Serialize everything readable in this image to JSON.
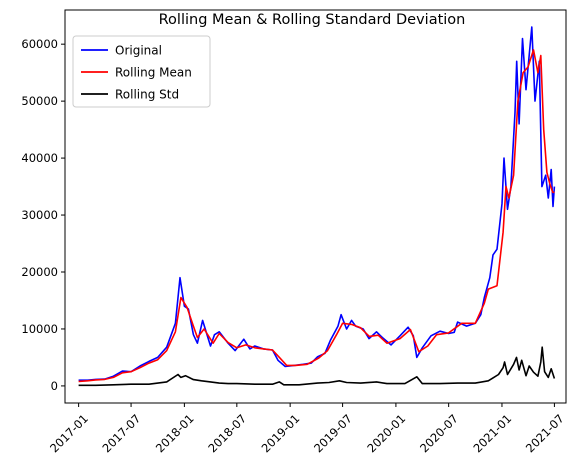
{
  "chart_data": {
    "type": "line",
    "title": "Rolling Mean & Rolling Standard Deviation",
    "xlabel": "",
    "ylabel": "",
    "xlim": [
      "2016-11-15",
      "2021-08-10"
    ],
    "ylim": [
      -3000,
      66000
    ],
    "x_ticks": [
      "2017-01",
      "2017-07",
      "2018-01",
      "2018-07",
      "2019-01",
      "2019-07",
      "2020-01",
      "2020-07",
      "2021-01",
      "2021-07"
    ],
    "y_ticks": [
      0,
      10000,
      20000,
      30000,
      40000,
      50000,
      60000
    ],
    "grid": false,
    "legend_position": "top-left",
    "series": [
      {
        "name": "Original",
        "color": "#0000ff",
        "points": [
          [
            "2017-01-01",
            1000
          ],
          [
            "2017-02-01",
            1000
          ],
          [
            "2017-03-01",
            1150
          ],
          [
            "2017-04-01",
            1200
          ],
          [
            "2017-05-01",
            1700
          ],
          [
            "2017-06-01",
            2600
          ],
          [
            "2017-07-01",
            2500
          ],
          [
            "2017-08-01",
            3500
          ],
          [
            "2017-09-01",
            4300
          ],
          [
            "2017-10-01",
            5000
          ],
          [
            "2017-11-01",
            6800
          ],
          [
            "2017-12-01",
            11000
          ],
          [
            "2017-12-17",
            19000
          ],
          [
            "2018-01-01",
            14000
          ],
          [
            "2018-01-15",
            13500
          ],
          [
            "2018-02-01",
            9000
          ],
          [
            "2018-02-15",
            7500
          ],
          [
            "2018-03-05",
            11500
          ],
          [
            "2018-04-01",
            7000
          ],
          [
            "2018-04-15",
            9000
          ],
          [
            "2018-05-01",
            9500
          ],
          [
            "2018-06-01",
            7500
          ],
          [
            "2018-06-25",
            6200
          ],
          [
            "2018-07-25",
            8200
          ],
          [
            "2018-08-15",
            6500
          ],
          [
            "2018-09-01",
            7000
          ],
          [
            "2018-10-01",
            6500
          ],
          [
            "2018-11-01",
            6300
          ],
          [
            "2018-11-20",
            4500
          ],
          [
            "2018-12-15",
            3400
          ],
          [
            "2019-01-15",
            3600
          ],
          [
            "2019-02-15",
            3800
          ],
          [
            "2019-03-15",
            4000
          ],
          [
            "2019-04-05",
            5100
          ],
          [
            "2019-05-01",
            5700
          ],
          [
            "2019-05-20",
            8000
          ],
          [
            "2019-06-15",
            10500
          ],
          [
            "2019-06-26",
            12500
          ],
          [
            "2019-07-15",
            10000
          ],
          [
            "2019-08-01",
            11500
          ],
          [
            "2019-08-15",
            10500
          ],
          [
            "2019-09-10",
            10000
          ],
          [
            "2019-09-30",
            8300
          ],
          [
            "2019-10-26",
            9500
          ],
          [
            "2019-11-15",
            8500
          ],
          [
            "2019-12-15",
            7200
          ],
          [
            "2020-01-15",
            8800
          ],
          [
            "2020-02-12",
            10300
          ],
          [
            "2020-03-01",
            8800
          ],
          [
            "2020-03-13",
            5000
          ],
          [
            "2020-04-01",
            6700
          ],
          [
            "2020-05-01",
            8800
          ],
          [
            "2020-06-01",
            9600
          ],
          [
            "2020-07-01",
            9200
          ],
          [
            "2020-07-20",
            9400
          ],
          [
            "2020-08-01",
            11200
          ],
          [
            "2020-09-01",
            10500
          ],
          [
            "2020-10-01",
            11000
          ],
          [
            "2020-10-20",
            12500
          ],
          [
            "2020-11-01",
            15500
          ],
          [
            "2020-11-20",
            19000
          ],
          [
            "2020-12-01",
            23000
          ],
          [
            "2020-12-15",
            24000
          ],
          [
            "2021-01-01",
            32000
          ],
          [
            "2021-01-08",
            40000
          ],
          [
            "2021-01-20",
            31000
          ],
          [
            "2021-02-01",
            35000
          ],
          [
            "2021-02-15",
            48000
          ],
          [
            "2021-02-21",
            57000
          ],
          [
            "2021-03-01",
            46000
          ],
          [
            "2021-03-13",
            61000
          ],
          [
            "2021-03-25",
            52000
          ],
          [
            "2021-04-14",
            63000
          ],
          [
            "2021-04-25",
            50000
          ],
          [
            "2021-05-10",
            57000
          ],
          [
            "2021-05-19",
            35000
          ],
          [
            "2021-06-01",
            37000
          ],
          [
            "2021-06-10",
            33000
          ],
          [
            "2021-06-20",
            38000
          ],
          [
            "2021-06-26",
            31500
          ],
          [
            "2021-07-01",
            35000
          ]
        ]
      },
      {
        "name": "Rolling Mean",
        "color": "#ff0000",
        "points": [
          [
            "2017-01-01",
            800
          ],
          [
            "2017-02-01",
            900
          ],
          [
            "2017-03-01",
            1050
          ],
          [
            "2017-04-01",
            1150
          ],
          [
            "2017-05-01",
            1500
          ],
          [
            "2017-06-01",
            2300
          ],
          [
            "2017-07-01",
            2500
          ],
          [
            "2017-08-01",
            3200
          ],
          [
            "2017-09-01",
            4000
          ],
          [
            "2017-10-01",
            4600
          ],
          [
            "2017-11-01",
            6200
          ],
          [
            "2017-12-01",
            9500
          ],
          [
            "2017-12-20",
            15500
          ],
          [
            "2018-01-10",
            13800
          ],
          [
            "2018-02-01",
            10500
          ],
          [
            "2018-02-15",
            8500
          ],
          [
            "2018-03-10",
            10000
          ],
          [
            "2018-04-10",
            7500
          ],
          [
            "2018-05-01",
            9200
          ],
          [
            "2018-06-01",
            7600
          ],
          [
            "2018-07-01",
            6700
          ],
          [
            "2018-08-01",
            7200
          ],
          [
            "2018-09-01",
            6700
          ],
          [
            "2018-10-01",
            6500
          ],
          [
            "2018-11-01",
            6300
          ],
          [
            "2018-11-25",
            5000
          ],
          [
            "2018-12-20",
            3600
          ],
          [
            "2019-01-20",
            3600
          ],
          [
            "2019-03-01",
            3800
          ],
          [
            "2019-04-10",
            4900
          ],
          [
            "2019-05-10",
            6200
          ],
          [
            "2019-06-10",
            9000
          ],
          [
            "2019-07-01",
            11000
          ],
          [
            "2019-08-01",
            10800
          ],
          [
            "2019-09-01",
            10200
          ],
          [
            "2019-10-01",
            8700
          ],
          [
            "2019-11-01",
            8900
          ],
          [
            "2019-12-01",
            7500
          ],
          [
            "2020-01-15",
            8300
          ],
          [
            "2020-02-20",
            9900
          ],
          [
            "2020-03-20",
            6000
          ],
          [
            "2020-04-20",
            7000
          ],
          [
            "2020-05-20",
            9000
          ],
          [
            "2020-07-01",
            9300
          ],
          [
            "2020-08-15",
            11000
          ],
          [
            "2020-10-01",
            11000
          ],
          [
            "2020-11-01",
            14500
          ],
          [
            "2020-11-15",
            17000
          ],
          [
            "2020-12-15",
            17600
          ],
          [
            "2021-01-05",
            27000
          ],
          [
            "2021-01-15",
            35000
          ],
          [
            "2021-01-25",
            33000
          ],
          [
            "2021-02-10",
            37000
          ],
          [
            "2021-02-25",
            50000
          ],
          [
            "2021-03-15",
            55000
          ],
          [
            "2021-04-01",
            56000
          ],
          [
            "2021-04-20",
            59000
          ],
          [
            "2021-05-05",
            55000
          ],
          [
            "2021-05-15",
            58000
          ],
          [
            "2021-05-25",
            45000
          ],
          [
            "2021-06-05",
            37500
          ],
          [
            "2021-06-15",
            35500
          ],
          [
            "2021-06-25",
            34000
          ],
          [
            "2021-07-01",
            34000
          ]
        ]
      },
      {
        "name": "Rolling Std",
        "color": "#000000",
        "points": [
          [
            "2017-01-01",
            100
          ],
          [
            "2017-03-01",
            100
          ],
          [
            "2017-05-01",
            200
          ],
          [
            "2017-07-01",
            300
          ],
          [
            "2017-09-01",
            300
          ],
          [
            "2017-11-01",
            700
          ],
          [
            "2017-12-10",
            2000
          ],
          [
            "2017-12-20",
            1500
          ],
          [
            "2018-01-05",
            1800
          ],
          [
            "2018-02-01",
            1100
          ],
          [
            "2018-03-01",
            900
          ],
          [
            "2018-04-01",
            700
          ],
          [
            "2018-05-01",
            500
          ],
          [
            "2018-06-01",
            400
          ],
          [
            "2018-07-01",
            400
          ],
          [
            "2018-09-01",
            300
          ],
          [
            "2018-11-01",
            300
          ],
          [
            "2018-11-25",
            700
          ],
          [
            "2018-12-10",
            200
          ],
          [
            "2019-02-01",
            200
          ],
          [
            "2019-04-05",
            500
          ],
          [
            "2019-05-15",
            600
          ],
          [
            "2019-06-20",
            900
          ],
          [
            "2019-07-15",
            600
          ],
          [
            "2019-09-01",
            500
          ],
          [
            "2019-10-26",
            700
          ],
          [
            "2019-12-01",
            400
          ],
          [
            "2020-02-01",
            400
          ],
          [
            "2020-03-13",
            1600
          ],
          [
            "2020-04-01",
            400
          ],
          [
            "2020-06-01",
            400
          ],
          [
            "2020-08-01",
            500
          ],
          [
            "2020-10-01",
            500
          ],
          [
            "2020-11-15",
            900
          ],
          [
            "2020-12-01",
            1400
          ],
          [
            "2020-12-20",
            2000
          ],
          [
            "2021-01-05",
            3200
          ],
          [
            "2021-01-10",
            4200
          ],
          [
            "2021-01-20",
            2000
          ],
          [
            "2021-02-10",
            3800
          ],
          [
            "2021-02-20",
            5000
          ],
          [
            "2021-03-01",
            2800
          ],
          [
            "2021-03-10",
            4500
          ],
          [
            "2021-03-25",
            1800
          ],
          [
            "2021-04-05",
            3500
          ],
          [
            "2021-04-20",
            2400
          ],
          [
            "2021-05-05",
            1700
          ],
          [
            "2021-05-15",
            4200
          ],
          [
            "2021-05-20",
            6800
          ],
          [
            "2021-05-28",
            2500
          ],
          [
            "2021-06-10",
            1500
          ],
          [
            "2021-06-20",
            3000
          ],
          [
            "2021-07-01",
            1300
          ]
        ]
      }
    ]
  }
}
